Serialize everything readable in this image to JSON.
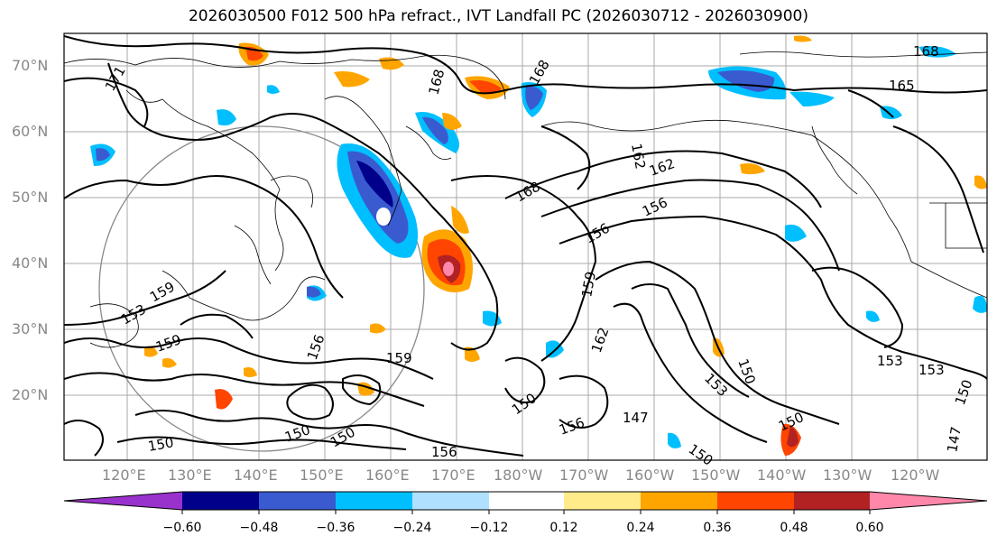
{
  "title": "2026030500 F012 500 hPa refract., IVT Landfall PC (2026030712 - 2026030900)",
  "lat_labels": [
    "70°N",
    "60°N",
    "50°N",
    "40°N",
    "30°N",
    "20°N"
  ],
  "lon_labels": [
    "120°E",
    "130°E",
    "140°E",
    "150°E",
    "160°E",
    "170°E",
    "180°W",
    "170°W",
    "160°W",
    "150°W",
    "140°W",
    "130°W",
    "120°W"
  ],
  "contour_labels": [
    "171",
    "168",
    "168",
    "162",
    "165",
    "168",
    "162",
    "168",
    "156",
    "156",
    "159",
    "159",
    "159",
    "156",
    "159",
    "150",
    "156",
    "147",
    "150",
    "153",
    "150",
    "150",
    "153",
    "153",
    "150",
    "147",
    "153",
    "150",
    "150",
    "150",
    "156",
    "162"
  ],
  "colorbar": {
    "colors": [
      "#9932cc",
      "#00008b",
      "#3a5bd0",
      "#00bfff",
      "#b0e0ff",
      "#ffffff",
      "#ffeb8a",
      "#ffa500",
      "#ff4500",
      "#b22222",
      "#ff88aa"
    ],
    "ticks": [
      "−0.60",
      "−0.48",
      "−0.36",
      "−0.24",
      "−0.12",
      "0.12",
      "0.24",
      "0.36",
      "0.48",
      "0.60"
    ]
  }
}
